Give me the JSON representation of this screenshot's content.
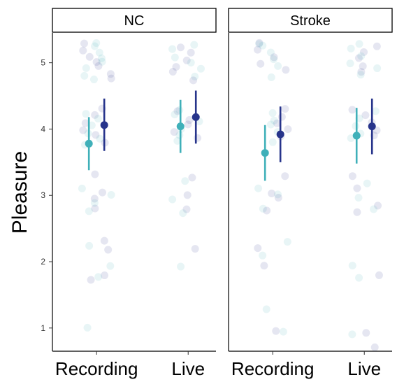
{
  "chart_data": {
    "type": "scatter",
    "title": "",
    "ylabel": "Pleasure",
    "xlabel": "",
    "ylim": [
      0.65,
      5.45
    ],
    "yticks": [
      1,
      2,
      3,
      4,
      5
    ],
    "grid": false,
    "colors": {
      "Recording": "#3fb0b9",
      "Live": "#27348b"
    },
    "x_categories": [
      "Recording",
      "Live"
    ],
    "panels": [
      {
        "name": "NC",
        "summary": [
          {
            "x": "Recording",
            "mean": 3.78,
            "lower": 3.38,
            "upper": 4.18
          },
          {
            "x": "Live",
            "mean": 4.04,
            "lower": 3.64,
            "upper": 4.44
          }
        ],
        "x_groups": [
          {
            "x": "Recording",
            "mean": 4.06,
            "lower": 3.67,
            "upper": 4.46
          },
          {
            "x": "Live",
            "mean": 4.18,
            "lower": 3.78,
            "upper": 4.58
          }
        ],
        "raw_points": {
          "Recording": [
            5.3,
            5.28,
            5.25,
            5.2,
            5.15,
            5.1,
            5.05,
            5.0,
            5.0,
            4.95,
            4.9,
            4.85,
            4.8,
            4.75,
            4.75,
            4.3,
            4.25,
            4.2,
            4.15,
            4.1,
            4.05,
            4.0,
            3.95,
            3.9,
            3.85,
            3.8,
            3.75,
            3.3,
            3.1,
            3.05,
            3.0,
            2.95,
            2.9,
            2.8,
            2.75,
            2.3,
            2.25,
            2.2,
            1.95,
            1.8,
            1.75,
            1.72,
            1.0
          ],
          "Live": [
            5.28,
            5.25,
            5.2,
            5.15,
            5.1,
            5.05,
            5.0,
            4.95,
            4.9,
            4.85,
            4.8,
            4.75,
            4.3,
            4.25,
            4.2,
            4.15,
            4.1,
            4.05,
            4.0,
            3.95,
            3.9,
            3.85,
            3.8,
            3.25,
            3.2,
            3.0,
            2.95,
            2.8,
            2.75,
            2.2,
            1.92
          ]
        }
      },
      {
        "name": "Stroke",
        "summary": [
          {
            "x": "Recording",
            "mean": 3.64,
            "lower": 3.22,
            "upper": 4.06
          },
          {
            "x": "Live",
            "mean": 3.9,
            "lower": 3.48,
            "upper": 4.32
          }
        ],
        "x_groups": [
          {
            "x": "Recording",
            "mean": 3.92,
            "lower": 3.5,
            "upper": 4.34
          },
          {
            "x": "Live",
            "mean": 4.04,
            "lower": 3.62,
            "upper": 4.46
          }
        ],
        "raw_points": {
          "Recording": [
            5.3,
            5.28,
            5.25,
            5.2,
            5.15,
            5.1,
            5.05,
            5.0,
            4.95,
            4.9,
            4.8,
            4.3,
            4.25,
            4.2,
            4.15,
            4.1,
            4.05,
            4.0,
            3.95,
            3.9,
            3.8,
            3.3,
            3.1,
            3.05,
            3.0,
            2.95,
            2.8,
            2.75,
            2.3,
            2.2,
            2.1,
            1.95,
            1.3,
            0.95,
            0.93
          ],
          "Live": [
            5.28,
            5.25,
            5.2,
            5.15,
            5.1,
            5.05,
            5.0,
            4.95,
            4.9,
            4.85,
            4.8,
            4.3,
            4.25,
            4.2,
            4.15,
            4.1,
            4.05,
            4.0,
            3.95,
            3.9,
            3.85,
            3.3,
            3.2,
            3.1,
            2.95,
            2.85,
            2.8,
            2.75,
            1.95,
            1.8,
            1.75,
            0.93,
            0.9,
            0.72
          ]
        }
      }
    ]
  }
}
